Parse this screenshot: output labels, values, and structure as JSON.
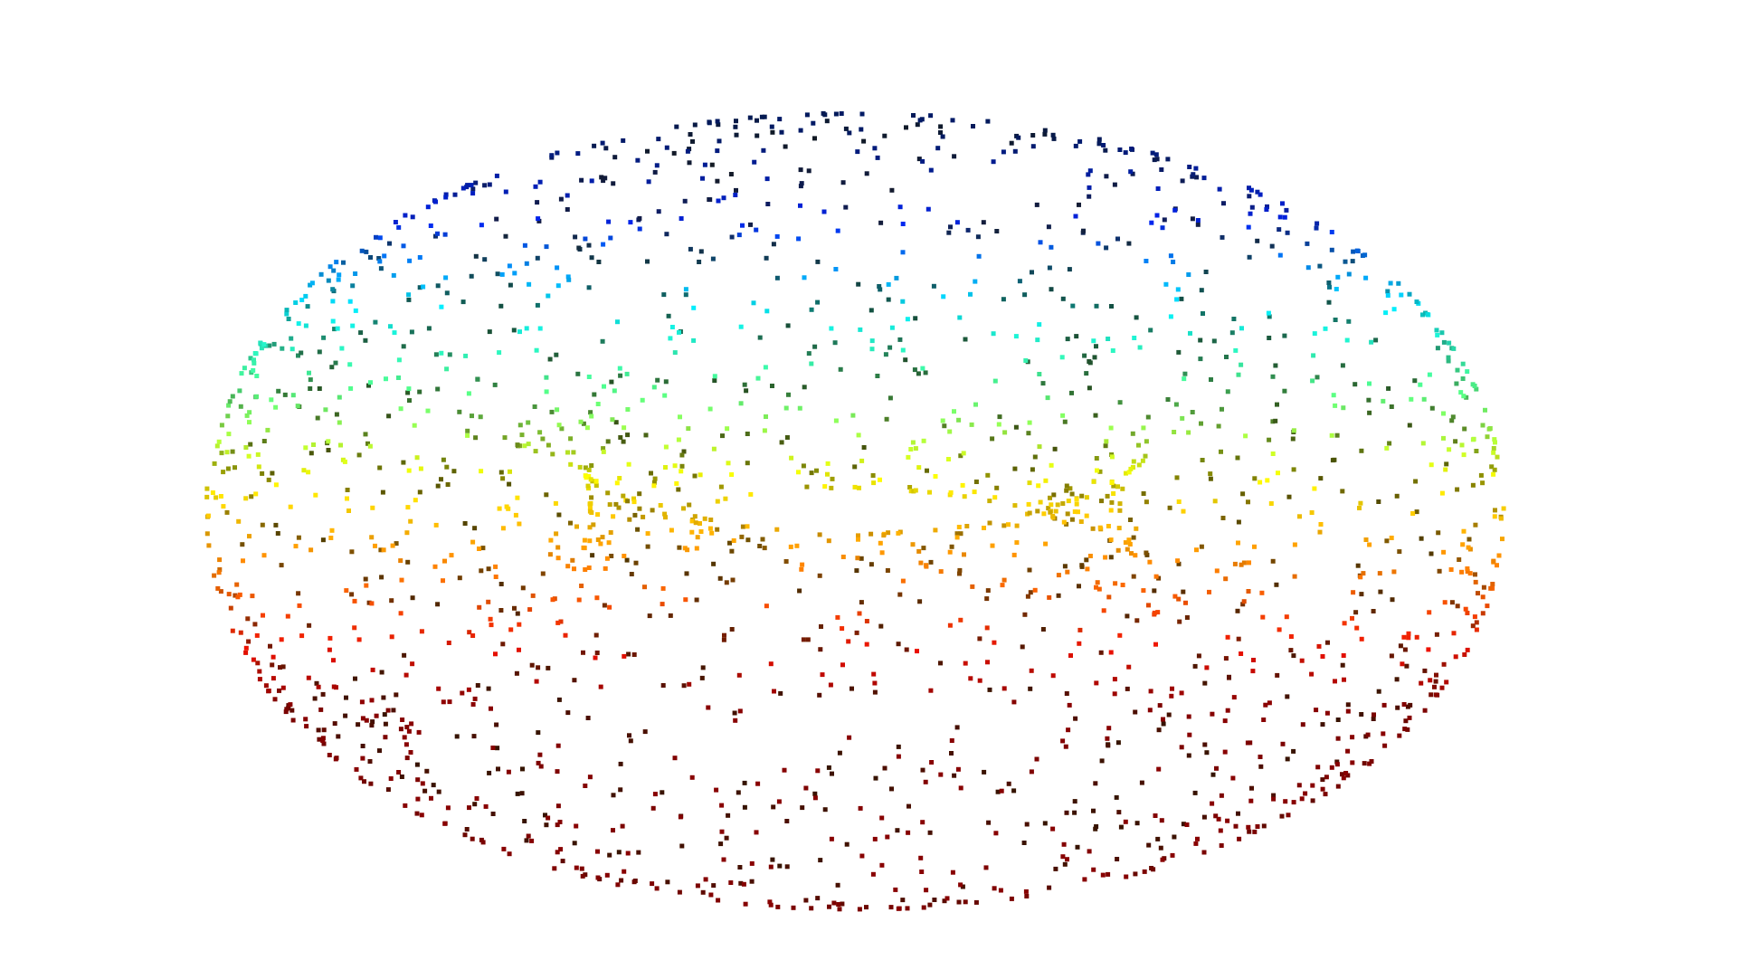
{
  "scene": {
    "subject": "torus-point-cloud",
    "background_color": "#ffffff",
    "point_count": 2200,
    "torus": {
      "major_radius": 1.0,
      "minor_radius": 0.42
    },
    "view": {
      "yaw_deg": 10,
      "pitch_deg": 62
    },
    "colormap": {
      "name": "jet-like",
      "stops": [
        {
          "t": 0.0,
          "color": "#001a66"
        },
        {
          "t": 0.15,
          "color": "#0022ee"
        },
        {
          "t": 0.3,
          "color": "#00eeff"
        },
        {
          "t": 0.45,
          "color": "#55ff88"
        },
        {
          "t": 0.6,
          "color": "#ffff00"
        },
        {
          "t": 0.75,
          "color": "#ff8800"
        },
        {
          "t": 0.9,
          "color": "#ee1100"
        },
        {
          "t": 1.0,
          "color": "#880000"
        }
      ],
      "shade_dark_color": "#1a1a00"
    }
  }
}
